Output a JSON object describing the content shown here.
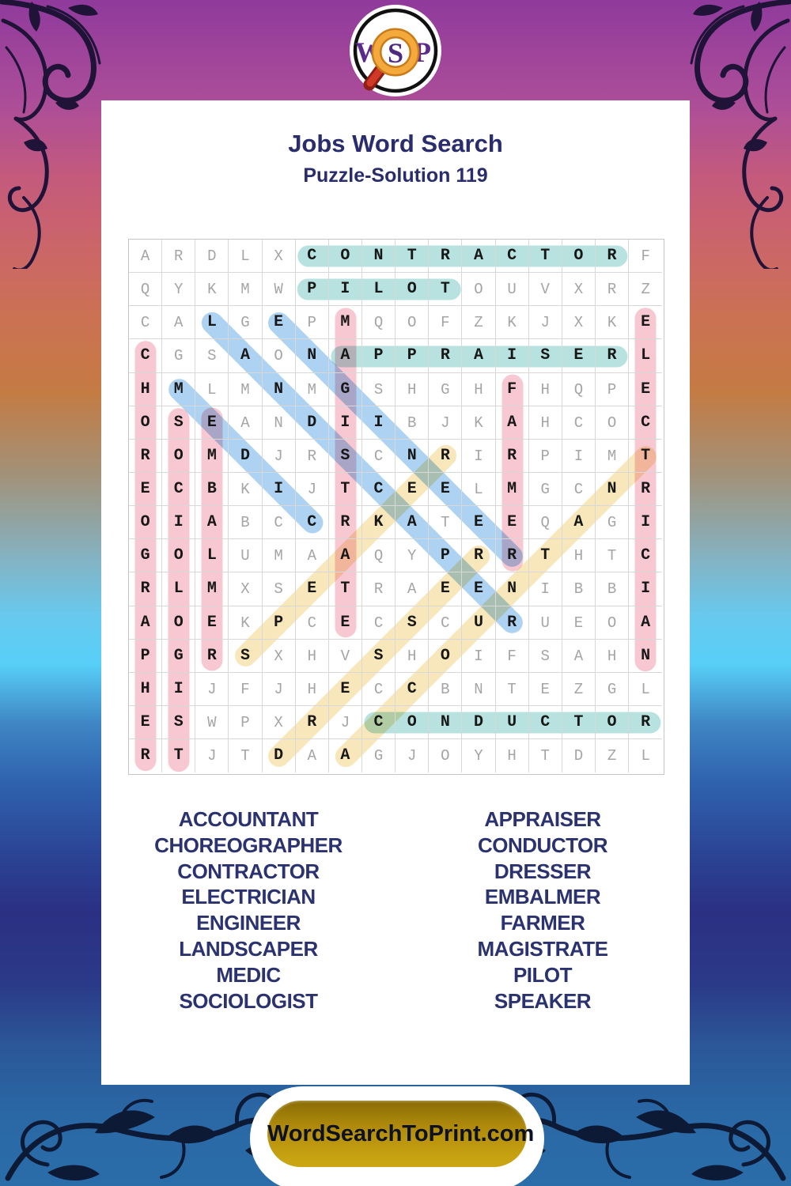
{
  "logo": {
    "letters": "WSP",
    "letter_color": "#5a2b8c",
    "ring_color": "#111111",
    "magnifier_color": "#ef9d2f",
    "handle_color": "#c0291c"
  },
  "header": {
    "title": "Jobs Word Search",
    "subtitle": "Puzzle-Solution 119"
  },
  "grid": {
    "size": 16,
    "rows": [
      "ARDLXCONTRACTORF",
      "QYKMWPILOTOUVXRZ",
      "CALGEPMQOFZKJXKE",
      "CGSAONAPPRAISERL",
      "HMLMNMGSHGHFHQPE",
      "OSEANDIIBJKAHCOC",
      "ROMDJRSCNRIRPIMT",
      "ECBKIJTCEELMGCNR",
      "OIABCCRKATEEQAGI",
      "GOLUMAAQYPRRTHTC",
      "RLMXSETRAEENIBBI",
      "AOEKPCECSCURUEOA",
      "PGRSXHVSHOIFSAHN",
      "HIJFJHECCBNTEZGL",
      "ESWPXRJCONDUCTOR",
      "RTJTDAAGJOYHTDZL"
    ],
    "highlight_colors": {
      "teal": "#b7e2df",
      "pink": "#f8c8d2",
      "blue": "#aed2f2",
      "yellow": "#f7e7bb"
    },
    "words": [
      {
        "word": "CONTRACTOR",
        "row": 1,
        "col": 6,
        "dir": "H",
        "color": "teal"
      },
      {
        "word": "PILOT",
        "row": 2,
        "col": 6,
        "dir": "H",
        "color": "teal"
      },
      {
        "word": "APPRAISER",
        "row": 4,
        "col": 7,
        "dir": "H",
        "color": "teal"
      },
      {
        "word": "CONDUCTOR",
        "row": 15,
        "col": 8,
        "dir": "H",
        "color": "teal"
      },
      {
        "word": "CHOREOGRAPHER",
        "row": 4,
        "col": 1,
        "dir": "V",
        "color": "pink"
      },
      {
        "word": "SOCIOLOGIST",
        "row": 6,
        "col": 2,
        "dir": "V",
        "color": "pink"
      },
      {
        "word": "EMBALMER",
        "row": 6,
        "col": 3,
        "dir": "V",
        "color": "pink"
      },
      {
        "word": "MAGISTRATE",
        "row": 3,
        "col": 7,
        "dir": "V",
        "color": "pink"
      },
      {
        "word": "FARMER",
        "row": 5,
        "col": 12,
        "dir": "V",
        "color": "pink"
      },
      {
        "word": "ELECTRICIAN",
        "row": 3,
        "col": 16,
        "dir": "V",
        "color": "pink"
      },
      {
        "word": "LANDSCAPER",
        "row": 3,
        "col": 3,
        "dir": "D",
        "color": "blue"
      },
      {
        "word": "ENGINEER",
        "row": 3,
        "col": 5,
        "dir": "D",
        "color": "blue"
      },
      {
        "word": "MEDIC",
        "row": 5,
        "col": 2,
        "dir": "D",
        "color": "blue"
      },
      {
        "word": "SPEAKER",
        "row": 13,
        "col": 4,
        "dir": "U",
        "color": "yellow"
      },
      {
        "word": "DRESSER",
        "row": 16,
        "col": 5,
        "dir": "U",
        "color": "yellow"
      },
      {
        "word": "ACCOUNTANT",
        "row": 16,
        "col": 7,
        "dir": "U",
        "color": "yellow"
      }
    ]
  },
  "word_list": {
    "left": [
      "ACCOUNTANT",
      "CHOREOGRAPHER",
      "CONTRACTOR",
      "ELECTRICIAN",
      "ENGINEER",
      "LANDSCAPER",
      "MEDIC",
      "SOCIOLOGIST"
    ],
    "right": [
      "APPRAISER",
      "CONDUCTOR",
      "DRESSER",
      "EMBALMER",
      "FARMER",
      "MAGISTRATE",
      "PILOT",
      "SPEAKER"
    ]
  },
  "footer": {
    "button_label": "WordSearchToPrint.com",
    "button_gold": "#b8900d",
    "button_text_color": "#0d1124"
  },
  "colors": {
    "title_navy": "#2a2d6d",
    "list_navy": "#2b3270",
    "solved_letter": "#171717",
    "filler_letter": "#a5a5a5",
    "top_ornament": "#201338",
    "bottom_ornament": "#0c1a36"
  }
}
